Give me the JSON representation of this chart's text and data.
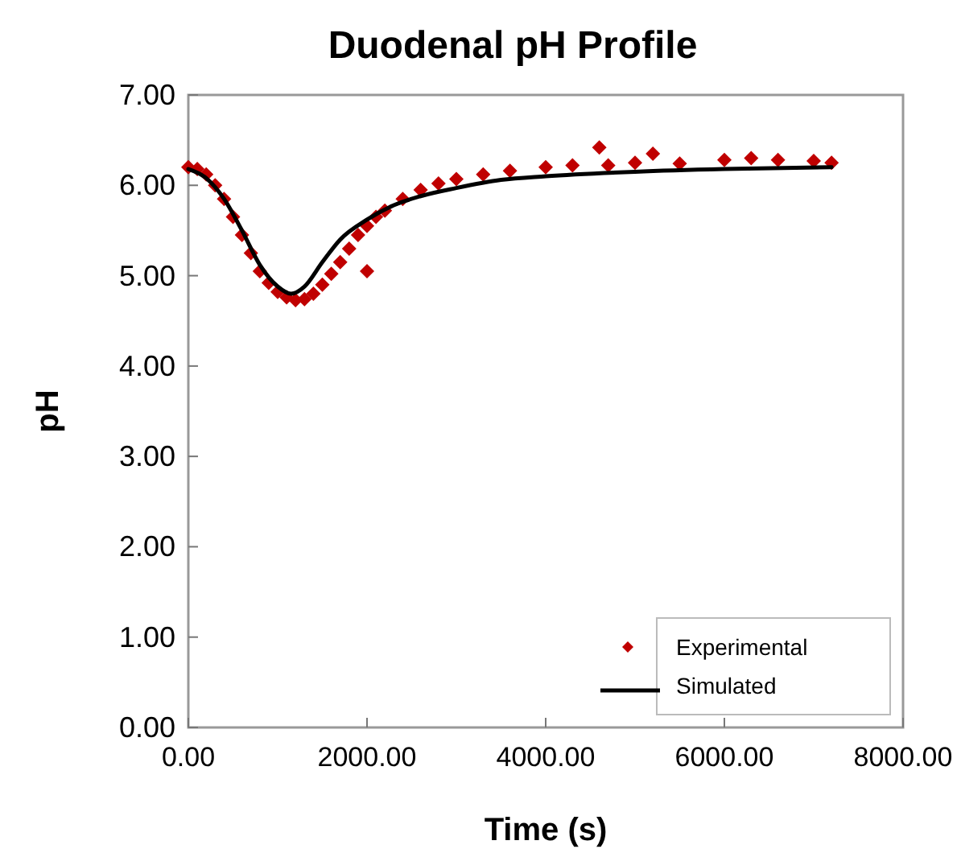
{
  "chart_data": {
    "type": "scatter",
    "title": "Duodenal pH Profile",
    "xlabel": "Time (s)",
    "ylabel": "pH",
    "xlim": [
      0,
      8000
    ],
    "ylim": [
      0,
      7
    ],
    "xticks": [
      {
        "value": 0,
        "label": "0.00"
      },
      {
        "value": 2000,
        "label": "2000.00"
      },
      {
        "value": 4000,
        "label": "4000.00"
      },
      {
        "value": 6000,
        "label": "6000.00"
      },
      {
        "value": 8000,
        "label": "8000.00"
      }
    ],
    "yticks": [
      {
        "value": 0,
        "label": "0.00"
      },
      {
        "value": 1,
        "label": "1.00"
      },
      {
        "value": 2,
        "label": "2.00"
      },
      {
        "value": 3,
        "label": "3.00"
      },
      {
        "value": 4,
        "label": "4.00"
      },
      {
        "value": 5,
        "label": "5.00"
      },
      {
        "value": 6,
        "label": "6.00"
      },
      {
        "value": 7,
        "label": "7.00"
      }
    ],
    "grid": false,
    "legend": "bottom right",
    "series": [
      {
        "name": "Experimental",
        "marker": "diamond",
        "color": "#c00000",
        "x": [
          0,
          100,
          200,
          300,
          400,
          500,
          600,
          700,
          800,
          900,
          1000,
          1100,
          1200,
          1300,
          1400,
          1500,
          1600,
          1700,
          1800,
          1900,
          2000,
          2000,
          2100,
          2200,
          2400,
          2600,
          2800,
          3000,
          3300,
          3600,
          4000,
          4300,
          4600,
          4700,
          5000,
          5200,
          5500,
          6000,
          6300,
          6600,
          7000,
          7200
        ],
        "values": [
          6.2,
          6.18,
          6.12,
          6.0,
          5.85,
          5.65,
          5.45,
          5.25,
          5.05,
          4.92,
          4.82,
          4.76,
          4.73,
          4.74,
          4.8,
          4.9,
          5.02,
          5.15,
          5.3,
          5.45,
          5.55,
          5.05,
          5.65,
          5.72,
          5.85,
          5.95,
          6.02,
          6.07,
          6.12,
          6.16,
          6.2,
          6.22,
          6.42,
          6.22,
          6.25,
          6.35,
          6.24,
          6.28,
          6.3,
          6.28,
          6.27,
          6.25
        ]
      },
      {
        "name": "Simulated",
        "type": "line",
        "marker": "none",
        "line_style": "solid",
        "color": "#000000",
        "x": [
          0,
          200,
          400,
          600,
          800,
          1000,
          1150,
          1300,
          1500,
          1700,
          2000,
          2300,
          2600,
          3000,
          3500,
          4000,
          5000,
          6000,
          7200
        ],
        "values": [
          6.18,
          6.08,
          5.85,
          5.5,
          5.12,
          4.88,
          4.8,
          4.88,
          5.15,
          5.4,
          5.62,
          5.78,
          5.88,
          5.97,
          6.06,
          6.1,
          6.15,
          6.18,
          6.2
        ]
      }
    ]
  }
}
